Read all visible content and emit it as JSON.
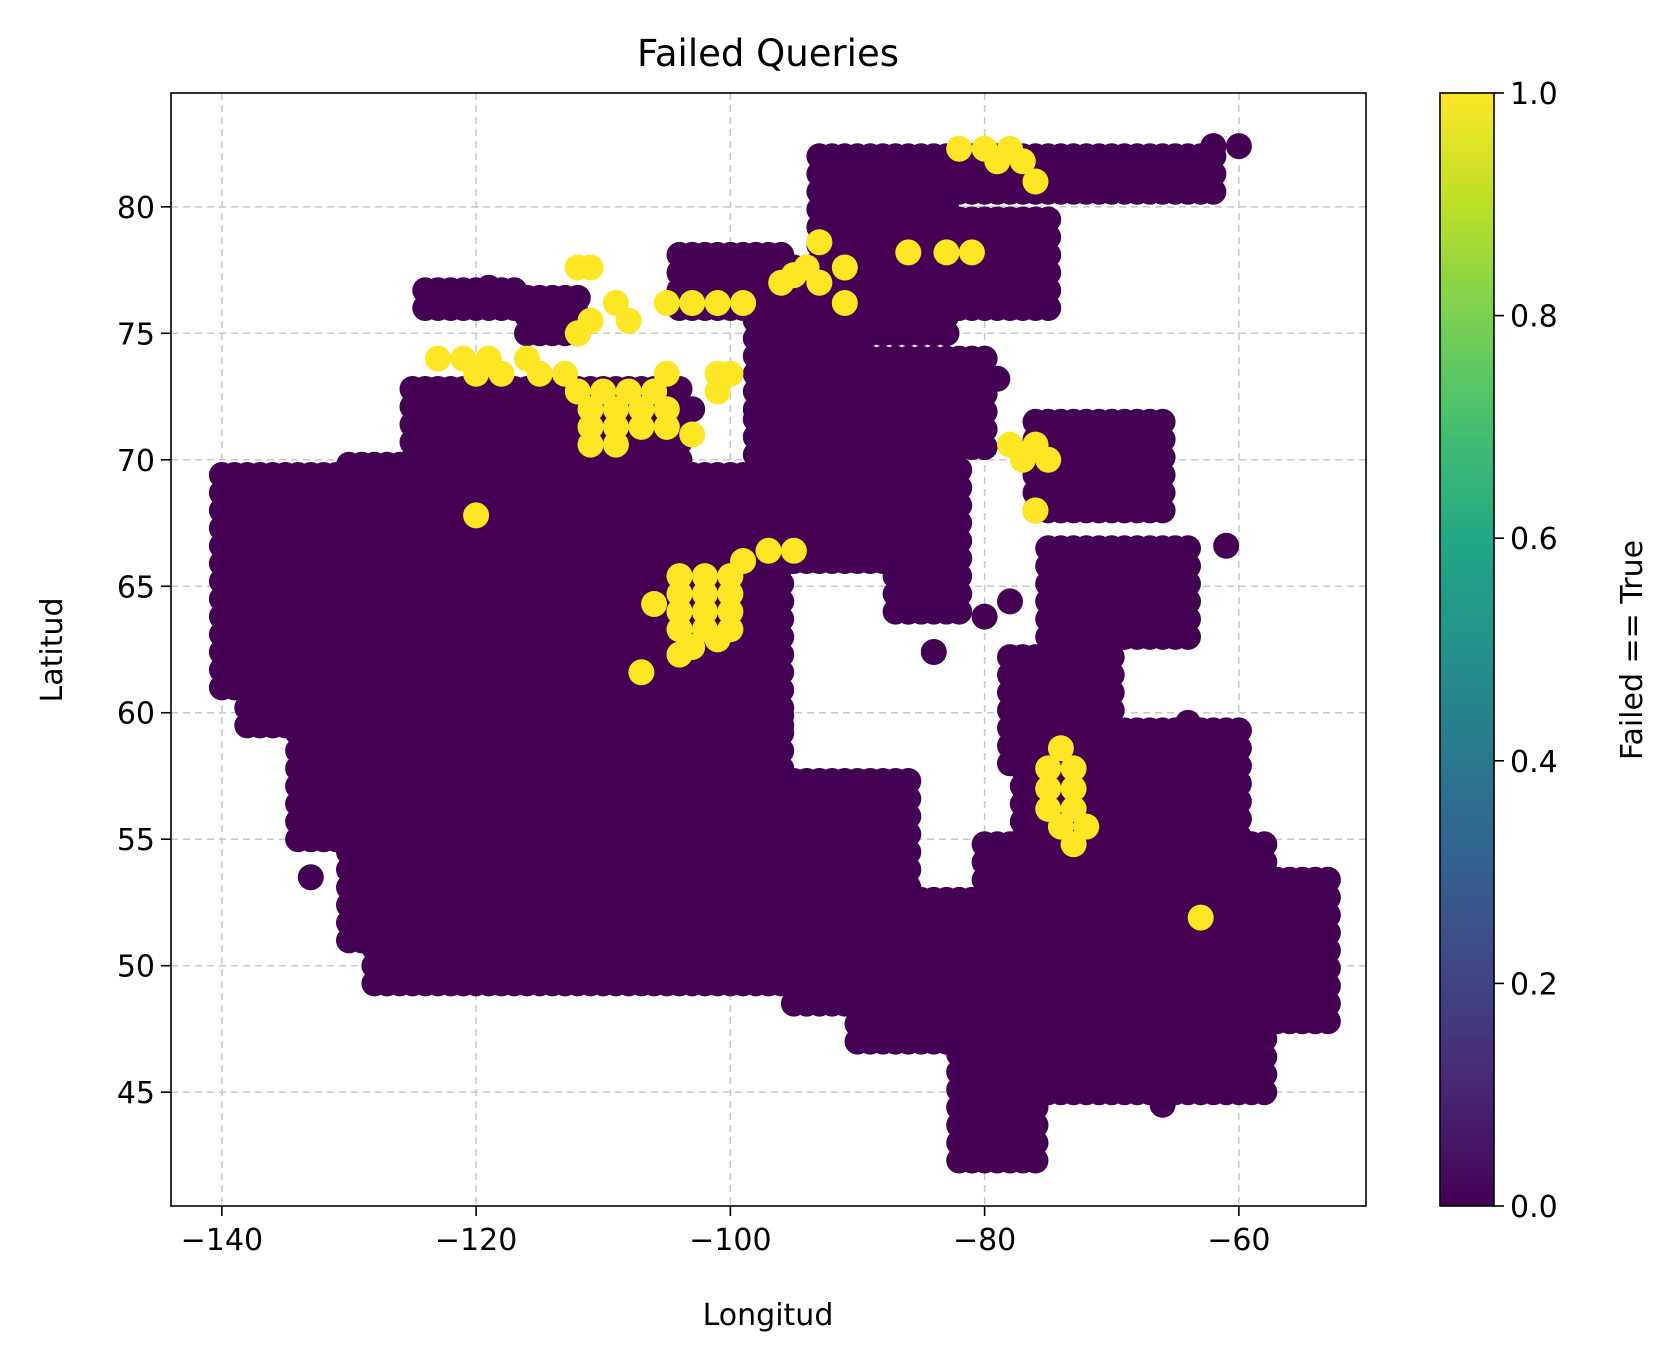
{
  "chart_data": {
    "type": "scatter",
    "title": "Failed Queries",
    "xlabel": "Longitud",
    "ylabel": "Latitud",
    "xlim": [
      -144,
      -50
    ],
    "ylim": [
      40.5,
      84.5
    ],
    "xticks": [
      -140,
      -120,
      -100,
      -80,
      -60
    ],
    "xtick_labels": [
      "−140",
      "−120",
      "−100",
      "−80",
      "−60"
    ],
    "yticks": [
      45,
      50,
      55,
      60,
      65,
      70,
      75,
      80
    ],
    "ytick_labels": [
      "45",
      "50",
      "55",
      "60",
      "65",
      "70",
      "75",
      "80"
    ],
    "grid": true,
    "colorbar": {
      "label": "Failed == True",
      "range": [
        0,
        1
      ],
      "ticks": [
        0.0,
        0.2,
        0.4,
        0.6,
        0.8,
        1.0
      ],
      "tick_labels": [
        "0.0",
        "0.2",
        "0.4",
        "0.6",
        "0.8",
        "1.0"
      ],
      "colormap": "viridis"
    },
    "colors": {
      "false": "#440154",
      "true": "#fde725"
    },
    "not_failed_regions": [
      {
        "lon": [
          -140,
          -121
        ],
        "lat": [
          61,
          69.5
        ]
      },
      {
        "lon": [
          -138,
          -96
        ],
        "lat": [
          59.5,
          68
        ]
      },
      {
        "lon": [
          -134,
          -96
        ],
        "lat": [
          55,
          60
        ]
      },
      {
        "lon": [
          -130,
          -86
        ],
        "lat": [
          51,
          57.5
        ]
      },
      {
        "lon": [
          -128,
          -86
        ],
        "lat": [
          49.3,
          52
        ]
      },
      {
        "lon": [
          -130,
          -110
        ],
        "lat": [
          67,
          70
        ]
      },
      {
        "lon": [
          -122,
          -96
        ],
        "lat": [
          68,
          70
        ]
      },
      {
        "lon": [
          -125,
          -104
        ],
        "lat": [
          70,
          72.8
        ]
      },
      {
        "lon": [
          -116,
          -112
        ],
        "lat": [
          75,
          76.4
        ]
      },
      {
        "lon": [
          -124,
          -117
        ],
        "lat": [
          76,
          77
        ]
      },
      {
        "lon": [
          -104,
          -96
        ],
        "lat": [
          76,
          78.4
        ]
      },
      {
        "lon": [
          -98,
          -90
        ],
        "lat": [
          72,
          78
        ]
      },
      {
        "lon": [
          -98,
          -84
        ],
        "lat": [
          66,
          72
        ]
      },
      {
        "lon": [
          -92,
          -80
        ],
        "lat": [
          70.5,
          74
        ]
      },
      {
        "lon": [
          -93,
          -83
        ],
        "lat": [
          75,
          82
        ]
      },
      {
        "lon": [
          -83,
          -62
        ],
        "lat": [
          80.6,
          82.5
        ]
      },
      {
        "lon": [
          -84,
          -75
        ],
        "lat": [
          76,
          80
        ]
      },
      {
        "lon": [
          -87,
          -82
        ],
        "lat": [
          64,
          70
        ]
      },
      {
        "lon": [
          -76,
          -66
        ],
        "lat": [
          68,
          72
        ]
      },
      {
        "lon": [
          -75,
          -64
        ],
        "lat": [
          63,
          67
        ]
      },
      {
        "lon": [
          -78,
          -70
        ],
        "lat": [
          58,
          62.2
        ]
      },
      {
        "lon": [
          -77,
          -73
        ],
        "lat": [
          55,
          58
        ]
      },
      {
        "lon": [
          -80,
          -58
        ],
        "lat": [
          45,
          55
        ]
      },
      {
        "lon": [
          -72,
          -60
        ],
        "lat": [
          53,
          59.5
        ]
      },
      {
        "lon": [
          -60,
          -53
        ],
        "lat": [
          47.8,
          53.5
        ]
      },
      {
        "lon": [
          -90,
          -70
        ],
        "lat": [
          47,
          53
        ]
      },
      {
        "lon": [
          -82,
          -76
        ],
        "lat": [
          42.3,
          47
        ]
      },
      {
        "lon": [
          -95,
          -80
        ],
        "lat": [
          48.5,
          52
        ]
      }
    ],
    "failed_points": [
      [
        -82,
        82.3
      ],
      [
        -80,
        82.3
      ],
      [
        -78,
        82.3
      ],
      [
        -79,
        81.8
      ],
      [
        -77,
        81.8
      ],
      [
        -76,
        81
      ],
      [
        -93,
        78.6
      ],
      [
        -95,
        77.3
      ],
      [
        -94,
        77.6
      ],
      [
        -93,
        77
      ],
      [
        -96,
        77
      ],
      [
        -91,
        76.2
      ],
      [
        -91,
        77.6
      ],
      [
        -86,
        78.2
      ],
      [
        -83,
        78.2
      ],
      [
        -81,
        78.2
      ],
      [
        -112,
        77.6
      ],
      [
        -111,
        77.6
      ],
      [
        -111,
        75.5
      ],
      [
        -108,
        75.5
      ],
      [
        -109,
        76.2
      ],
      [
        -112,
        75
      ],
      [
        -105,
        76.2
      ],
      [
        -103,
        76.2
      ],
      [
        -101,
        76.2
      ],
      [
        -99,
        76.2
      ],
      [
        -121,
        74
      ],
      [
        -123,
        74
      ],
      [
        -119,
        74
      ],
      [
        -118,
        73.4
      ],
      [
        -116,
        74
      ],
      [
        -115,
        73.4
      ],
      [
        -113,
        73.4
      ],
      [
        -120,
        73.4
      ],
      [
        -112,
        72.7
      ],
      [
        -110,
        72.7
      ],
      [
        -108,
        72.7
      ],
      [
        -106,
        72.7
      ],
      [
        -105,
        73.4
      ],
      [
        -111,
        72
      ],
      [
        -109,
        72
      ],
      [
        -107,
        72
      ],
      [
        -105,
        72
      ],
      [
        -111,
        71.3
      ],
      [
        -109,
        71.3
      ],
      [
        -107,
        71.3
      ],
      [
        -105,
        71.3
      ],
      [
        -111,
        70.6
      ],
      [
        -109,
        70.6
      ],
      [
        -103,
        71
      ],
      [
        -101,
        73.4
      ],
      [
        -100,
        73.4
      ],
      [
        -101,
        72.7
      ],
      [
        -78,
        70.6
      ],
      [
        -76,
        70.6
      ],
      [
        -75,
        70
      ],
      [
        -77,
        70
      ],
      [
        -76,
        68
      ],
      [
        -120,
        67.8
      ],
      [
        -97,
        66.4
      ],
      [
        -95,
        66.4
      ],
      [
        -99,
        66
      ],
      [
        -104,
        65.4
      ],
      [
        -102,
        65.4
      ],
      [
        -100,
        65.4
      ],
      [
        -104,
        64.7
      ],
      [
        -102,
        64.7
      ],
      [
        -100,
        64.7
      ],
      [
        -106,
        64.3
      ],
      [
        -104,
        64
      ],
      [
        -102,
        64
      ],
      [
        -100,
        64
      ],
      [
        -104,
        63.3
      ],
      [
        -102,
        63.3
      ],
      [
        -100,
        63.3
      ],
      [
        -103,
        62.6
      ],
      [
        -101,
        62.9
      ],
      [
        -104,
        62.3
      ],
      [
        -107,
        61.6
      ],
      [
        -74,
        58.6
      ],
      [
        -75,
        57.8
      ],
      [
        -73,
        57.8
      ],
      [
        -75,
        57
      ],
      [
        -73,
        57
      ],
      [
        -75,
        56.2
      ],
      [
        -73,
        56.2
      ],
      [
        -74,
        55.5
      ],
      [
        -72,
        55.5
      ],
      [
        -73,
        54.8
      ],
      [
        -63,
        51.9
      ]
    ],
    "extra_not_failed_points": [
      [
        -133,
        53.5
      ],
      [
        -84,
        62.4
      ],
      [
        -61,
        45.8
      ],
      [
        -66,
        44.5
      ],
      [
        -73,
        47.5
      ],
      [
        -64,
        59.6
      ],
      [
        -62,
        56
      ],
      [
        -58,
        53.5
      ],
      [
        -55,
        49.3
      ],
      [
        -54,
        48
      ],
      [
        -61,
        66.6
      ],
      [
        -62,
        82.4
      ],
      [
        -60,
        82.4
      ],
      [
        -119,
        76.8
      ],
      [
        -124,
        72.7
      ],
      [
        -122,
        72
      ],
      [
        -107,
        70.6
      ],
      [
        -103,
        72
      ],
      [
        -88,
        75.2
      ],
      [
        -87,
        75.6
      ],
      [
        -79,
        73.2
      ],
      [
        -81,
        71.8
      ],
      [
        -117,
        65
      ],
      [
        -65,
        65
      ],
      [
        -78,
        64.4
      ],
      [
        -86,
        64
      ],
      [
        -80,
        63.8
      ]
    ]
  }
}
